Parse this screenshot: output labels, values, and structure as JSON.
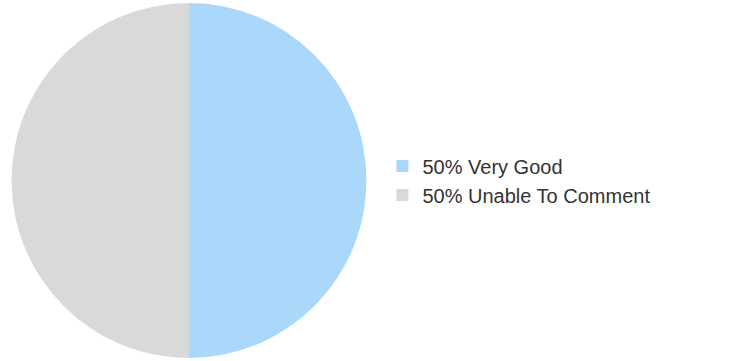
{
  "chart_data": {
    "type": "pie",
    "categories": [
      "50% Very Good",
      "50% Unable To Comment"
    ],
    "values": [
      50,
      50
    ],
    "colors": [
      "#aad8fb",
      "#d9d9d9"
    ],
    "legend": "right"
  }
}
